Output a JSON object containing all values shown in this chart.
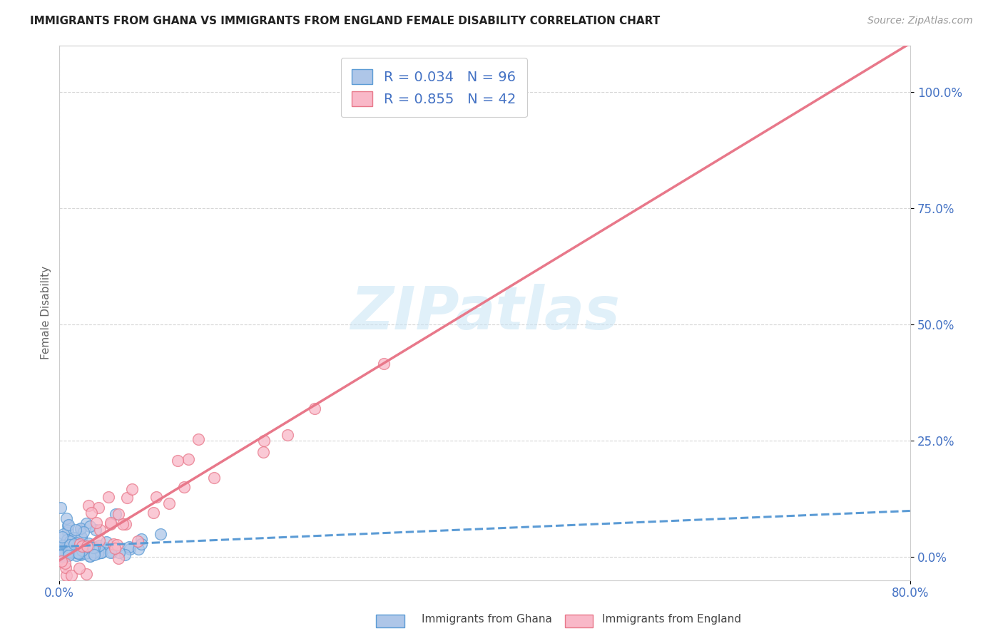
{
  "title": "IMMIGRANTS FROM GHANA VS IMMIGRANTS FROM ENGLAND FEMALE DISABILITY CORRELATION CHART",
  "source": "Source: ZipAtlas.com",
  "ylabel": "Female Disability",
  "ytick_labels": [
    "0.0%",
    "25.0%",
    "50.0%",
    "75.0%",
    "100.0%"
  ],
  "ytick_values": [
    0.0,
    0.25,
    0.5,
    0.75,
    1.0
  ],
  "xlim": [
    0,
    0.8
  ],
  "ylim": [
    -0.05,
    1.1
  ],
  "ghana_R": 0.034,
  "ghana_N": 96,
  "england_R": 0.855,
  "england_N": 42,
  "ghana_color": "#aec6e8",
  "england_color": "#f9b8c8",
  "ghana_edge_color": "#5b9bd5",
  "england_edge_color": "#e8788a",
  "ghana_line_color": "#5b9bd5",
  "england_line_color": "#e8788a",
  "watermark": "ZIPatlas",
  "background_color": "#ffffff",
  "legend_label_ghana": "Immigrants from Ghana",
  "legend_label_england": "Immigrants from England",
  "title_fontsize": 11,
  "source_fontsize": 10,
  "tick_fontsize": 12,
  "ylabel_fontsize": 11
}
